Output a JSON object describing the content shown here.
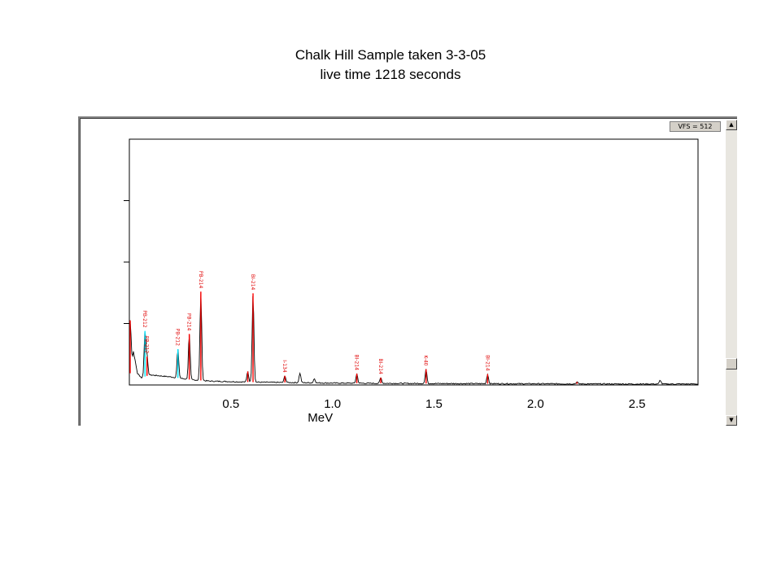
{
  "slide": {
    "title_line1": "Chalk Hill Sample taken 3-3-05",
    "title_line2": "live time 1218 seconds"
  },
  "window": {
    "vfs_label": "VFS = 512",
    "scroll_up_glyph": "▲",
    "scroll_down_glyph": "▼"
  },
  "colors": {
    "spectrum": "#000000",
    "peak_marker": "#ff0000",
    "highlight_marker": "#00e5ff",
    "plot_frame": "#000000"
  },
  "chart_data": {
    "type": "line",
    "title": "",
    "xlabel": "MeV",
    "ylabel": "",
    "xlim": [
      0,
      2.8
    ],
    "ylim": [
      0,
      512
    ],
    "x_ticks": [
      0.5,
      1.0,
      1.5,
      2.0,
      2.5
    ],
    "x_tick_labels": [
      "0.5",
      "1.0",
      "1.5",
      "2.0",
      "2.5"
    ],
    "y_ticks": [
      128,
      256,
      384
    ],
    "grid": false,
    "background_counts": [
      [
        0.0,
        13
      ],
      [
        0.02,
        70
      ],
      [
        0.04,
        24
      ],
      [
        0.06,
        15
      ],
      [
        0.1,
        21
      ],
      [
        0.15,
        19
      ],
      [
        0.2,
        17
      ],
      [
        0.25,
        14
      ],
      [
        0.3,
        11
      ],
      [
        0.4,
        8
      ],
      [
        0.5,
        7
      ],
      [
        0.6,
        6
      ],
      [
        0.8,
        5
      ],
      [
        1.0,
        4
      ],
      [
        1.2,
        3.5
      ],
      [
        1.5,
        3
      ],
      [
        2.0,
        2.5
      ],
      [
        2.5,
        2
      ],
      [
        2.8,
        2
      ]
    ],
    "peaks": [
      {
        "energy": 0.004,
        "counts": 110,
        "color": "red",
        "label": ""
      },
      {
        "energy": 0.077,
        "counts": 95,
        "color": "cyan",
        "label": "PB-212"
      },
      {
        "energy": 0.087,
        "counts": 40,
        "color": "red",
        "label": "PB-212"
      },
      {
        "energy": 0.239,
        "counts": 60,
        "color": "cyan",
        "label": "PB-212"
      },
      {
        "energy": 0.295,
        "counts": 95,
        "color": "red",
        "label": "PB-214"
      },
      {
        "energy": 0.352,
        "counts": 185,
        "color": "red",
        "label": "PB-214"
      },
      {
        "energy": 0.583,
        "counts": 22,
        "color": "red",
        "label": ""
      },
      {
        "energy": 0.609,
        "counts": 185,
        "color": "red",
        "label": "BI-214"
      },
      {
        "energy": 0.766,
        "counts": 14,
        "color": "red",
        "label": "I-134"
      },
      {
        "energy": 0.84,
        "counts": 20,
        "color": "black",
        "label": ""
      },
      {
        "energy": 0.911,
        "counts": 9,
        "color": "black",
        "label": ""
      },
      {
        "energy": 1.12,
        "counts": 20,
        "color": "red",
        "label": "BI-214"
      },
      {
        "energy": 1.238,
        "counts": 12,
        "color": "red",
        "label": "BI-214"
      },
      {
        "energy": 1.461,
        "counts": 30,
        "color": "red",
        "label": "K-40"
      },
      {
        "energy": 1.764,
        "counts": 20,
        "color": "red",
        "label": "BI-214"
      },
      {
        "energy": 2.204,
        "counts": 4,
        "color": "red",
        "label": ""
      },
      {
        "energy": 2.614,
        "counts": 8,
        "color": "black",
        "label": ""
      }
    ]
  }
}
